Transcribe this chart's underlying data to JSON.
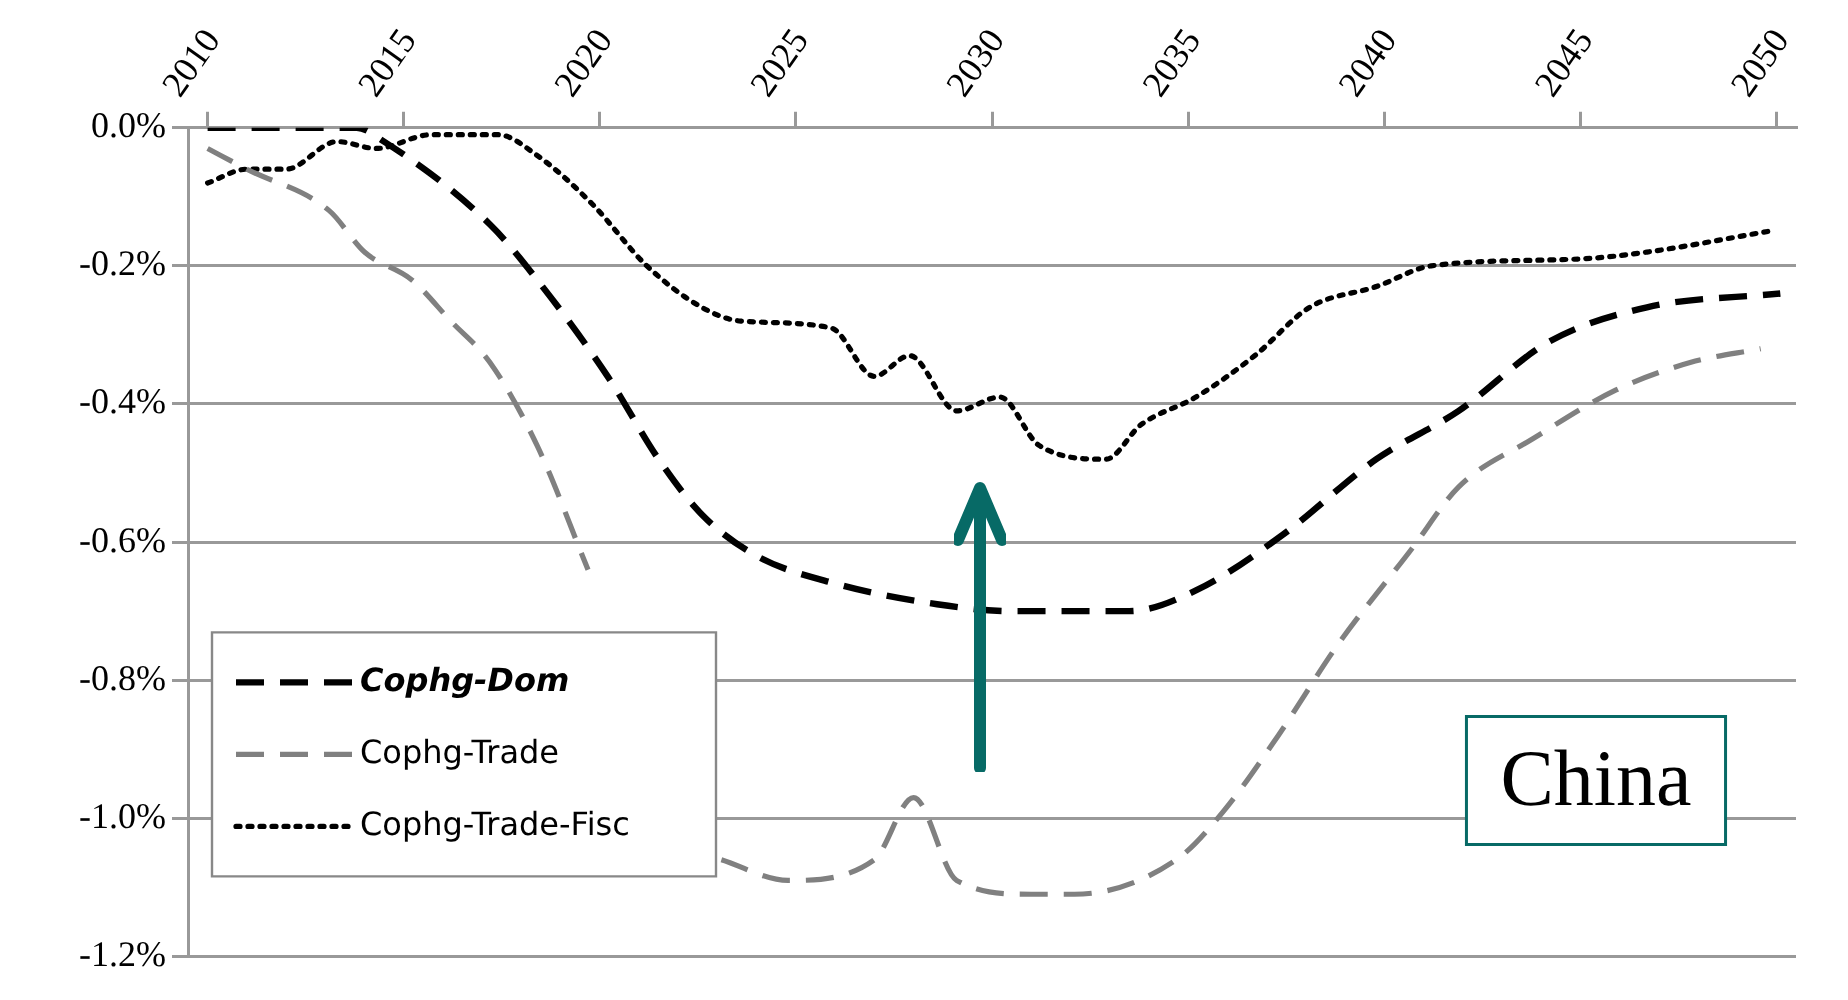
{
  "chart_data": {
    "type": "line",
    "xlim": [
      2009.5,
      2050.5
    ],
    "xticks": [
      2010,
      2015,
      2020,
      2025,
      2030,
      2035,
      2040,
      2045,
      2050
    ],
    "ylim": [
      -1.2,
      0
    ],
    "yticks": [
      {
        "value": 0,
        "label": "0.0%"
      },
      {
        "value": -0.2,
        "label": "-0.2%"
      },
      {
        "value": -0.4,
        "label": "-0.4%"
      },
      {
        "value": -0.6,
        "label": "-0.6%"
      },
      {
        "value": -0.8,
        "label": "-0.8%"
      },
      {
        "value": -1.0,
        "label": "-1.0%"
      },
      {
        "value": -1.2,
        "label": "-1.2%"
      }
    ],
    "grid": "y",
    "legend": "bottom left",
    "marker": "none",
    "annotations": [
      "China"
    ],
    "series": [
      {
        "name": "Cophg-Dom",
        "color": "#000000",
        "line_style": "dashed",
        "x": [
          2010,
          2011,
          2013.8,
          2014.5,
          2017.2,
          2018.4,
          2020.2,
          2021.5,
          2022.6,
          2024,
          2026,
          2028.6,
          2030.5,
          2033.5,
          2035.2,
          2037.4,
          2039.8,
          2041.9,
          2044.2,
          2046.7,
          2050.1
        ],
        "values": [
          0,
          0,
          0,
          -0.02,
          -0.14,
          -0.22,
          -0.36,
          -0.48,
          -0.56,
          -0.62,
          -0.66,
          -0.69,
          -0.7,
          -0.7,
          -0.67,
          -0.59,
          -0.48,
          -0.41,
          -0.31,
          -0.26,
          -0.24
        ]
      },
      {
        "name": "Cophg-Trade",
        "color": "#808080",
        "line_style": "dashed",
        "x": [
          2010,
          2011,
          2013.1,
          2014,
          2015.2,
          2016.2,
          2017.2,
          2018.4,
          2019.7,
          2020.2,
          2023.1,
          2024.8,
          2027,
          2028,
          2029.1,
          2031,
          2032.1,
          2034.7,
          2035.9,
          2037.3,
          2038.8,
          2040.7,
          2041.9,
          2043.8,
          2045.9,
          2047.8,
          2049.6
        ],
        "values": [
          -0.03,
          -0.06,
          -0.12,
          -0.18,
          -0.22,
          -0.28,
          -0.34,
          -0.46,
          -0.64,
          null,
          -1.06,
          -1.09,
          -1.06,
          -0.97,
          -1.09,
          -1.11,
          -1.11,
          -1.06,
          -0.99,
          -0.88,
          -0.75,
          -0.61,
          -0.52,
          -0.45,
          -0.38,
          -0.34,
          -0.32
        ]
      },
      {
        "name": "Cophg-Trade-Fisc",
        "color": "#000000",
        "line_style": "dotted",
        "x": [
          2010,
          2011,
          2012,
          2013.3,
          2014.3,
          2015.7,
          2017.4,
          2018.4,
          2019.8,
          2021.2,
          2022.6,
          2023.6,
          2025.9,
          2027,
          2027.9,
          2029.1,
          2030.2,
          2031.2,
          2032.9,
          2033.8,
          2035.2,
          2036.7,
          2038.1,
          2039.8,
          2041.2,
          2045,
          2046.7,
          2049.8
        ],
        "values": [
          -0.08,
          -0.06,
          -0.06,
          -0.02,
          -0.03,
          -0.01,
          -0.01,
          -0.04,
          -0.11,
          -0.2,
          -0.26,
          -0.28,
          -0.29,
          -0.36,
          -0.33,
          -0.41,
          -0.39,
          -0.46,
          -0.48,
          -0.43,
          -0.39,
          -0.33,
          -0.26,
          -0.23,
          -0.2,
          -0.19,
          -0.18,
          -0.15
        ]
      }
    ]
  }
}
